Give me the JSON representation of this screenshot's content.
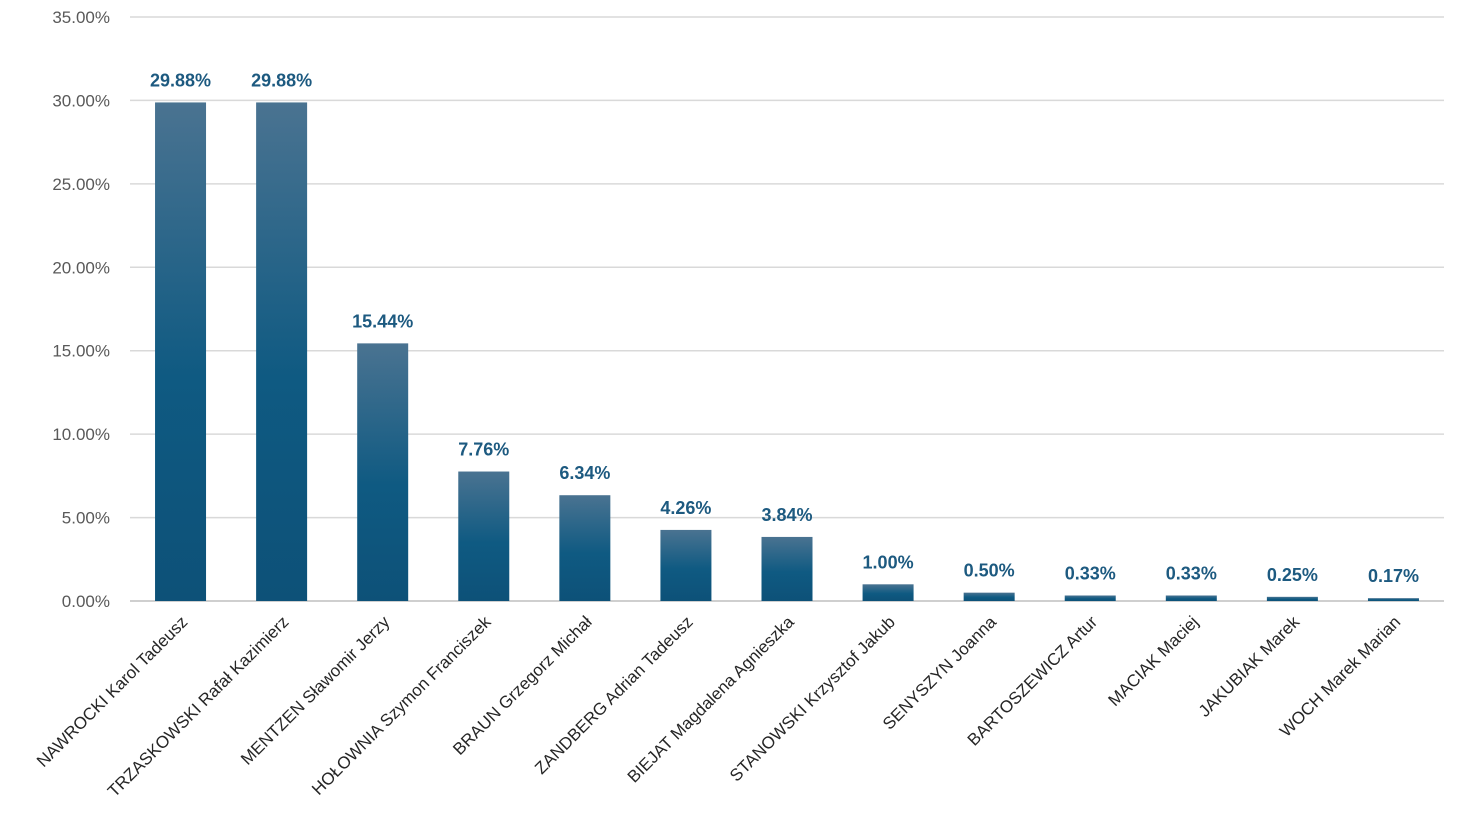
{
  "chart_data": {
    "type": "bar",
    "title": "",
    "xlabel": "",
    "ylabel": "",
    "categories": [
      "NAWROCKI Karol Tadeusz",
      "TRZASKOWSKI Rafał Kazimierz",
      "MENTZEN Sławomir Jerzy",
      "HOŁOWNIA Szymon Franciszek",
      "BRAUN Grzegorz Michał",
      "ZANDBERG Adrian Tadeusz",
      "BIEJAT Magdalena Agnieszka",
      "STANOWSKI Krzysztof Jakub",
      "SENYSZYN Joanna",
      "BARTOSZEWICZ Artur",
      "MACIAK Maciej",
      "JAKUBIAK Marek",
      "WOCH Marek Marian"
    ],
    "values": [
      29.88,
      29.88,
      15.44,
      7.76,
      6.34,
      4.26,
      3.84,
      1.0,
      0.5,
      0.33,
      0.33,
      0.25,
      0.17
    ],
    "data_labels": [
      "29.88%",
      "29.88%",
      "15.44%",
      "7.76%",
      "6.34%",
      "4.26%",
      "3.84%",
      "1.00%",
      "0.50%",
      "0.33%",
      "0.33%",
      "0.25%",
      "0.17%"
    ],
    "ylim": [
      0,
      35
    ],
    "yticks": [
      0,
      5,
      10,
      15,
      20,
      25,
      30,
      35
    ],
    "ytick_labels": [
      "0.00%",
      "5.00%",
      "10.00%",
      "15.00%",
      "20.00%",
      "25.00%",
      "30.00%",
      "35.00%"
    ],
    "grid": true,
    "legend": "none",
    "colors": {
      "bar_top": "#4a7391",
      "bar_bottom": "#0f5a82",
      "label": "#1d5a80"
    }
  }
}
